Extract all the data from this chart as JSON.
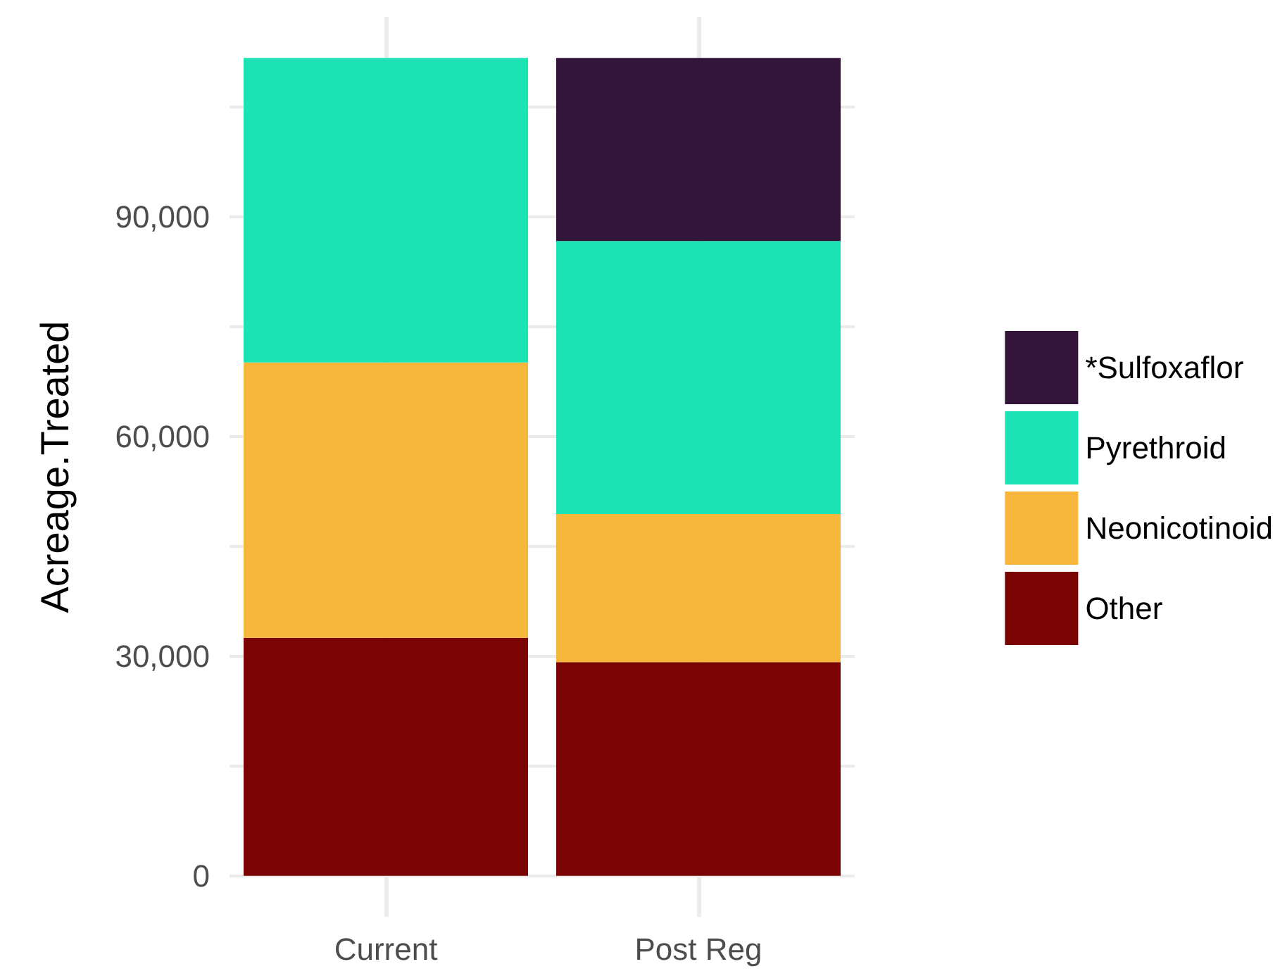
{
  "chart_data": {
    "type": "bar",
    "stacked": true,
    "ylabel": "Acreage.Treated",
    "categories": [
      "Current",
      "Post Reg"
    ],
    "series": [
      {
        "name": "Other",
        "color": "#7a0403",
        "values": [
          32500,
          29200
        ]
      },
      {
        "name": "Neonicotinoid",
        "color": "#f6b73c",
        "values": [
          37600,
          20200
        ]
      },
      {
        "name": "Pyrethroid",
        "color": "#1de3b4",
        "values": [
          41600,
          37300
        ]
      },
      {
        "name": "*Sulfoxaflor",
        "color": "#331539",
        "values": [
          null,
          25000
        ]
      }
    ],
    "ylim": [
      -5600,
      117300
    ],
    "yticks": [
      {
        "value": 0,
        "label": "0"
      },
      {
        "value": 15000,
        "label": null
      },
      {
        "value": 30000,
        "label": "30,000"
      },
      {
        "value": 45000,
        "label": null
      },
      {
        "value": 60000,
        "label": "60,000"
      },
      {
        "value": 75000,
        "label": null
      },
      {
        "value": 90000,
        "label": "90,000"
      },
      {
        "value": 105000,
        "label": null
      }
    ],
    "grid": true,
    "legend": "right"
  }
}
